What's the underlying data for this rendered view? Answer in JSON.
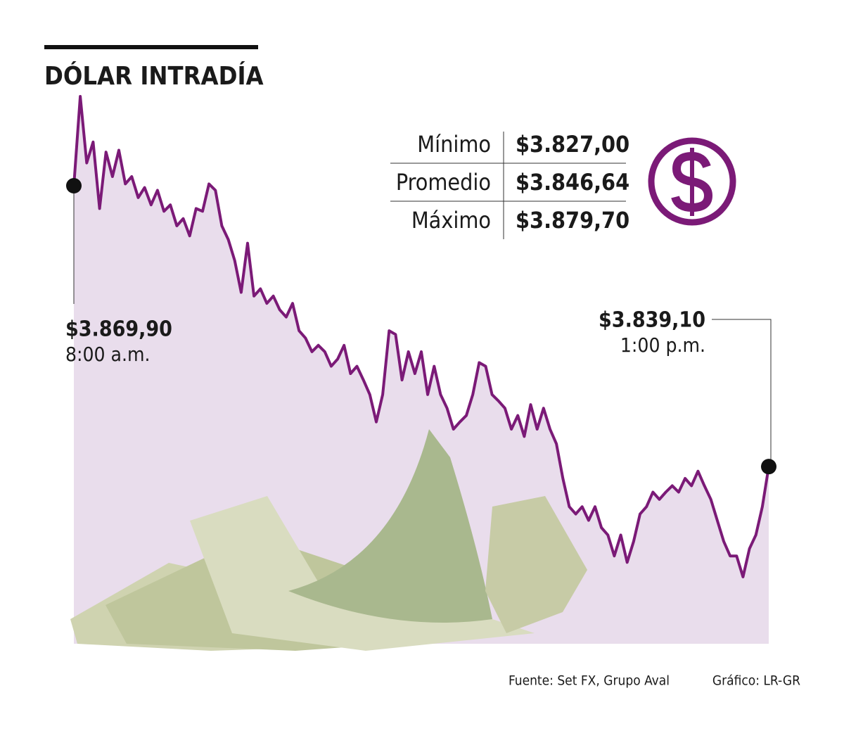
{
  "chart_data": {
    "type": "line",
    "title": "DÓLAR INTRADÍA",
    "color": "#7b1a77",
    "area_color": "#e9ddec",
    "values": [
      3869.9,
      3879.7,
      3872.4,
      3874.7,
      3867.4,
      3873.6,
      3870.9,
      3873.8,
      3870.1,
      3870.9,
      3868.6,
      3869.7,
      3867.8,
      3869.4,
      3867.1,
      3867.8,
      3865.5,
      3866.3,
      3864.4,
      3867.4,
      3867.1,
      3870.1,
      3869.4,
      3865.5,
      3864.0,
      3861.7,
      3858.2,
      3863.6,
      3857.8,
      3858.6,
      3857.0,
      3857.8,
      3856.3,
      3855.5,
      3857.0,
      3854.0,
      3853.2,
      3851.7,
      3852.4,
      3851.7,
      3850.1,
      3850.9,
      3852.4,
      3849.3,
      3850.1,
      3848.6,
      3847.0,
      3844.0,
      3847.0,
      3854.0,
      3853.6,
      3848.6,
      3851.7,
      3849.3,
      3851.7,
      3847.0,
      3850.1,
      3847.0,
      3845.5,
      3843.2,
      3844.0,
      3844.7,
      3847.0,
      3850.5,
      3850.1,
      3847.0,
      3846.3,
      3845.5,
      3843.2,
      3844.7,
      3842.4,
      3845.9,
      3843.2,
      3845.5,
      3843.2,
      3841.6,
      3837.8,
      3834.7,
      3833.9,
      3834.7,
      3833.2,
      3834.7,
      3832.4,
      3831.6,
      3829.3,
      3831.6,
      3828.6,
      3830.9,
      3833.9,
      3834.7,
      3836.3,
      3835.5,
      3836.3,
      3837.0,
      3836.3,
      3837.8,
      3837.0,
      3838.6,
      3837.0,
      3835.5,
      3833.2,
      3830.9,
      3829.3,
      3829.3,
      3827.0,
      3830.1,
      3831.6,
      3834.7,
      3839.1
    ],
    "annotations": [
      {
        "label": "$3.869,90",
        "time": "8:00 a.m."
      },
      {
        "label": "$3.839,10",
        "time": "1:00 p.m."
      }
    ],
    "stats": [
      {
        "name": "Mínimo",
        "label": "$3.827,00"
      },
      {
        "name": "Promedio",
        "label": "$3.846,64"
      },
      {
        "name": "Máximo",
        "label": "$3.879,70"
      }
    ],
    "source": "Fuente: Set FX, Grupo Aval",
    "credit": "Gráfico: LR-GR"
  }
}
